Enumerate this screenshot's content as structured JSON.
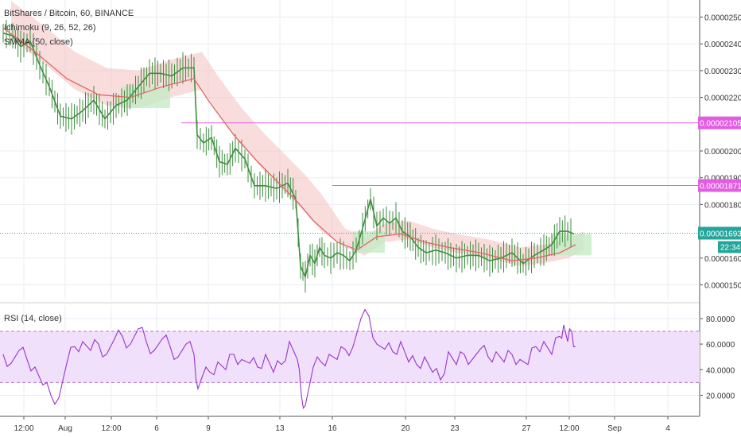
{
  "header": {
    "symbol_line": "BitShares / Bitcoin, 60, BINANCE",
    "indicator_1": "Ichimoku (9, 26, 52, 26)",
    "indicator_2": "SMMA (50, close)"
  },
  "rsi_panel": {
    "title": "RSI (14, close)"
  },
  "colors": {
    "candle": "#3e8e3e",
    "smma": "#e06666",
    "cloud_red": "#f4c0c0",
    "cloud_green": "#c6ebc6",
    "grid": "#e8edf3",
    "rsi_line": "#9933cc",
    "rsi_band": "#f0e0fb",
    "hline_magenta": "#e35de3",
    "current_price": "#26a69a"
  },
  "x_ticks": [
    "12:00",
    "Aug",
    "12:00",
    "6",
    "9",
    "13",
    "16",
    "20",
    "23",
    "27",
    "12:00",
    "Sep",
    "4"
  ],
  "price_axis": {
    "ticks": [
      "0.00002500",
      "0.00002400",
      "0.00002300",
      "0.00002200",
      "0.00002000",
      "0.00001900",
      "0.00001800",
      "0.00001600",
      "0.00001500"
    ],
    "ylim": [
      1.46e-05,
      2.54e-05
    ]
  },
  "rsi_axis": {
    "ticks": [
      "80.0000",
      "60.0000",
      "40.0000",
      "20.0000"
    ],
    "ylim": [
      6,
      88
    ]
  },
  "horizontal_lines": [
    {
      "label": "0.00002105",
      "value": 2.105e-05
    },
    {
      "label": "0.00001871",
      "value": 1.871e-05
    }
  ],
  "current_price": {
    "label": "0.00001693",
    "value": 1.693e-05,
    "countdown": "22:34"
  },
  "chart_data": {
    "type": "line",
    "price_series": {
      "x": [
        0,
        12,
        22,
        34,
        46,
        58,
        72,
        86,
        100,
        114,
        128,
        142,
        156,
        170,
        184,
        198,
        212,
        226,
        240,
        244,
        252,
        262,
        272,
        282,
        292,
        304,
        316,
        330,
        344,
        358,
        368,
        374,
        380,
        386,
        392,
        398,
        404,
        412,
        420,
        428,
        436,
        444,
        452,
        462,
        470,
        478,
        486,
        494,
        502,
        512,
        522,
        532,
        544,
        556,
        570,
        584,
        598,
        612,
        626,
        640,
        654,
        668,
        680,
        690,
        700,
        710,
        718
      ],
      "y": [
        2.44e-05,
        2.43e-05,
        2.39e-05,
        2.41e-05,
        2.32e-05,
        2.24e-05,
        2.13e-05,
        2.12e-05,
        2.15e-05,
        2.19e-05,
        2.12e-05,
        2.17e-05,
        2.19e-05,
        2.24e-05,
        2.29e-05,
        2.29e-05,
        2.28e-05,
        2.31e-05,
        2.31e-05,
        2.06e-05,
        2.03e-05,
        2.05e-05,
        1.96e-05,
        1.95e-05,
        2.01e-05,
        1.97e-05,
        1.87e-05,
        1.87e-05,
        1.86e-05,
        1.88e-05,
        1.82e-05,
        1.57e-05,
        1.53e-05,
        1.61e-05,
        1.58e-05,
        1.64e-05,
        1.61e-05,
        1.6e-05,
        1.62e-05,
        1.61e-05,
        1.59e-05,
        1.63e-05,
        1.71e-05,
        1.82e-05,
        1.72e-05,
        1.75e-05,
        1.73e-05,
        1.75e-05,
        1.7e-05,
        1.68e-05,
        1.64e-05,
        1.62e-05,
        1.63e-05,
        1.62e-05,
        1.6e-05,
        1.61e-05,
        1.61e-05,
        1.59e-05,
        1.6e-05,
        1.62e-05,
        1.58e-05,
        1.61e-05,
        1.63e-05,
        1.65e-05,
        1.7e-05,
        1.7e-05,
        1.69e-05
      ]
    },
    "smma": {
      "x": [
        0,
        40,
        80,
        120,
        160,
        200,
        240,
        260,
        290,
        320,
        350,
        370,
        390,
        420,
        445,
        470,
        500,
        530,
        560,
        600,
        640,
        670,
        700,
        720
      ],
      "y": [
        2.46e-05,
        2.37e-05,
        2.27e-05,
        2.21e-05,
        2.2e-05,
        2.24e-05,
        2.27e-05,
        2.18e-05,
        2.06e-05,
        1.96e-05,
        1.87e-05,
        1.81e-05,
        1.74e-05,
        1.66e-05,
        1.63e-05,
        1.68e-05,
        1.69e-05,
        1.66e-05,
        1.64e-05,
        1.62e-05,
        1.59e-05,
        1.6e-05,
        1.62e-05,
        1.65e-05
      ]
    },
    "rsi": {
      "x": [
        0,
        10,
        20,
        30,
        40,
        50,
        60,
        70,
        80,
        90,
        100,
        110,
        120,
        130,
        140,
        150,
        160,
        170,
        180,
        190,
        200,
        210,
        220,
        230,
        240,
        245,
        250,
        260,
        270,
        280,
        290,
        300,
        310,
        320,
        330,
        340,
        350,
        360,
        370,
        375,
        380,
        390,
        400,
        410,
        420,
        430,
        440,
        450,
        460,
        470,
        480,
        490,
        500,
        510,
        520,
        530,
        540,
        550,
        560,
        570,
        580,
        590,
        600,
        610,
        620,
        630,
        640,
        650,
        660,
        670,
        680,
        690,
        700,
        705,
        710,
        715,
        720
      ],
      "y": [
        52,
        45,
        55,
        48,
        42,
        28,
        20,
        18,
        45,
        58,
        62,
        55,
        60,
        52,
        64,
        66,
        60,
        72,
        62,
        55,
        64,
        58,
        50,
        60,
        52,
        25,
        34,
        38,
        46,
        40,
        52,
        48,
        45,
        42,
        52,
        38,
        44,
        62,
        48,
        20,
        12,
        42,
        46,
        52,
        48,
        56,
        58,
        80,
        82,
        60,
        56,
        54,
        62,
        46,
        44,
        50,
        38,
        32,
        54,
        44,
        52,
        48,
        56,
        50,
        54,
        46,
        52,
        48,
        44,
        58,
        62,
        52,
        66,
        75,
        62,
        70,
        58
      ]
    },
    "rsi_band": [
      30,
      70
    ],
    "xlabel": "",
    "ylabel": ""
  }
}
